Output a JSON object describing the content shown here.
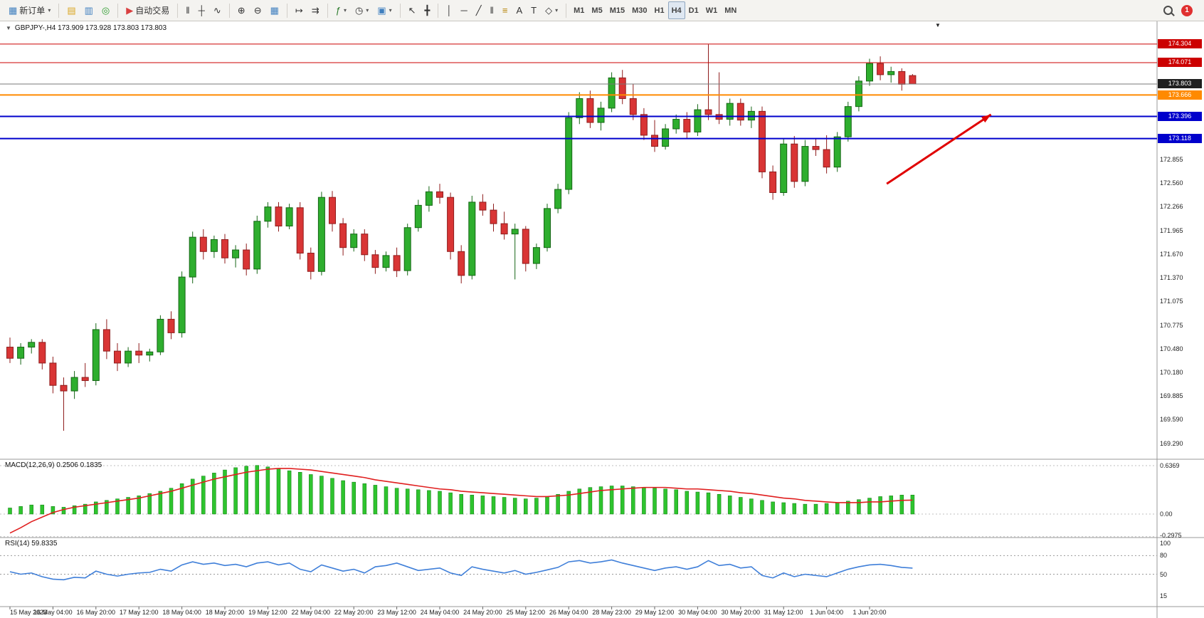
{
  "toolbar": {
    "active_timeframe": "H4",
    "notification_count": "1",
    "groups": [
      {
        "items": [
          {
            "name": "new-order",
            "label": "新订单",
            "glyph": "▦",
            "glyph_color": "#3f7fbf",
            "caret": true
          }
        ]
      },
      {
        "items": [
          {
            "name": "profiles",
            "glyph": "▤",
            "glyph_color": "#d9a520"
          },
          {
            "name": "market-watch",
            "glyph": "▥",
            "glyph_color": "#3f7fbf"
          },
          {
            "name": "navigator",
            "glyph": "◎",
            "glyph_color": "#2a9a2a"
          }
        ]
      },
      {
        "items": [
          {
            "name": "algo-trading",
            "label": "自动交易",
            "glyph": "▶",
            "glyph_color": "#d94040"
          }
        ]
      },
      {
        "items": [
          {
            "name": "bar-chart",
            "glyph": "‖"
          },
          {
            "name": "candlestick-chart",
            "glyph": "┼"
          },
          {
            "name": "line-chart",
            "glyph": "∿"
          }
        ]
      },
      {
        "items": [
          {
            "name": "zoom-in",
            "glyph": "⊕"
          },
          {
            "name": "zoom-out",
            "glyph": "⊖"
          },
          {
            "name": "tile-windows",
            "glyph": "▦",
            "glyph_color": "#3f7fbf"
          }
        ]
      },
      {
        "items": [
          {
            "name": "auto-scroll",
            "glyph": "↦"
          },
          {
            "name": "chart-shift",
            "glyph": "⇉"
          }
        ]
      },
      {
        "items": [
          {
            "name": "indicators",
            "glyph": "ƒ",
            "glyph_color": "#2a7a2a",
            "caret": true
          },
          {
            "name": "periods",
            "glyph": "◷",
            "caret": true
          },
          {
            "name": "templates",
            "glyph": "▣",
            "glyph_color": "#3f7fbf",
            "caret": true
          }
        ]
      },
      {
        "items": [
          {
            "name": "cursor",
            "glyph": "↖"
          },
          {
            "name": "crosshair",
            "glyph": "╋"
          }
        ]
      },
      {
        "items": [
          {
            "name": "vertical-line",
            "glyph": "│"
          },
          {
            "name": "horizontal-line",
            "glyph": "─"
          },
          {
            "name": "trendline",
            "glyph": "╱"
          },
          {
            "name": "equidistant-channel",
            "glyph": "‖"
          },
          {
            "name": "fibonacci",
            "glyph": "≡",
            "glyph_color": "#b8860b"
          },
          {
            "name": "text",
            "glyph": "A"
          },
          {
            "name": "text-label",
            "glyph": "T"
          },
          {
            "name": "shapes",
            "glyph": "◇",
            "caret": true
          }
        ]
      },
      {
        "type": "timeframes",
        "items": [
          {
            "name": "tf-m1",
            "label": "M1"
          },
          {
            "name": "tf-m5",
            "label": "M5"
          },
          {
            "name": "tf-m15",
            "label": "M15"
          },
          {
            "name": "tf-m30",
            "label": "M30"
          },
          {
            "name": "tf-h1",
            "label": "H1"
          },
          {
            "name": "tf-h4",
            "label": "H4"
          },
          {
            "name": "tf-d1",
            "label": "D1"
          },
          {
            "name": "tf-w1",
            "label": "W1"
          },
          {
            "name": "tf-mn",
            "label": "MN"
          }
        ]
      }
    ]
  },
  "chart": {
    "collapse_glyph": "▼",
    "title": "GBPJPY-,H4 173.909 173.928 173.803 173.803",
    "symbol": "GBPJPY-",
    "period": "H4",
    "ohlc": {
      "open": "173.909",
      "high": "173.928",
      "low": "173.803",
      "close": "173.803"
    },
    "shift_marker_glyph": "▼"
  },
  "indicators": {
    "macd": {
      "label": "MACD(12,26,9) 0.2506 0.1835",
      "main": "0.2506",
      "signal": "0.1835",
      "scale_labels": [
        "0.6369",
        "0.00",
        "-0.2975"
      ]
    },
    "rsi": {
      "label": "RSI(14) 59.8335",
      "value": "59.8335",
      "scale_labels": [
        "100",
        "80",
        "50",
        "15"
      ]
    }
  },
  "colors": {
    "bull": "#2eae2e",
    "bull_stroke": "#156615",
    "bear": "#d93535",
    "bear_stroke": "#8f1d1d",
    "macd_bar": "#2ec42e",
    "macd_bar_stroke": "#0f7a0f",
    "macd_signal": "#e01f1f",
    "rsi_line": "#3f7fd9",
    "red_line": "#cc0000",
    "blue_line": "#0000cc",
    "orange_line": "#ff8a00",
    "bid_line": "#777777"
  },
  "chart_data": {
    "type": "candlestick",
    "title": "GBPJPY-,H4",
    "symbol": "GBPJPY-",
    "timeframe": "H4",
    "y_range": {
      "max": 174.5,
      "min": 169.2
    },
    "price_axis_labels": [
      "172.855",
      "172.560",
      "172.266",
      "171.965",
      "171.670",
      "171.370",
      "171.075",
      "170.775",
      "170.480",
      "170.180",
      "169.885",
      "169.590",
      "169.290"
    ],
    "price_lines": [
      {
        "label": "174.304",
        "price": 174.304,
        "color": "#cc0000",
        "width": 1,
        "badge": "#cc0000"
      },
      {
        "label": "174.071",
        "price": 174.071,
        "color": "#cc0000",
        "width": 1,
        "badge": "#cc0000"
      },
      {
        "label": "173.803",
        "price": 173.803,
        "color": "#777777",
        "width": 1,
        "badge": "#1f1f1f",
        "role": "bid"
      },
      {
        "label": "173.666",
        "price": 173.666,
        "color": "#ff8a00",
        "width": 2,
        "badge": "#ff8a00"
      },
      {
        "label": "173.396",
        "price": 173.396,
        "color": "#0000cc",
        "width": 2,
        "badge": "#0000cc"
      },
      {
        "label": "173.118",
        "price": 173.118,
        "color": "#0000cc",
        "width": 2,
        "badge": "#0000cc"
      }
    ],
    "time_labels": [
      "15 May 2023",
      "16 May 04:00",
      "16 May 20:00",
      "17 May 12:00",
      "18 May 04:00",
      "18 May 20:00",
      "19 May 12:00",
      "22 May 04:00",
      "22 May 20:00",
      "23 May 12:00",
      "24 May 04:00",
      "24 May 20:00",
      "25 May 12:00",
      "26 May 04:00",
      "28 May 23:00",
      "29 May 12:00",
      "30 May 04:00",
      "30 May 20:00",
      "31 May 12:00",
      "1 Jun 04:00",
      "1 Jun 20:00"
    ],
    "candles": [
      [
        170.5,
        170.62,
        170.3,
        170.36
      ],
      [
        170.36,
        170.55,
        170.28,
        170.5
      ],
      [
        170.5,
        170.6,
        170.42,
        170.56
      ],
      [
        170.56,
        170.6,
        170.22,
        170.3
      ],
      [
        170.3,
        170.38,
        169.92,
        170.02
      ],
      [
        170.02,
        170.12,
        169.45,
        169.95
      ],
      [
        169.95,
        170.2,
        169.85,
        170.12
      ],
      [
        170.12,
        170.3,
        170.0,
        170.08
      ],
      [
        170.08,
        170.8,
        170.02,
        170.72
      ],
      [
        170.72,
        170.85,
        170.35,
        170.45
      ],
      [
        170.45,
        170.55,
        170.2,
        170.3
      ],
      [
        170.3,
        170.5,
        170.25,
        170.45
      ],
      [
        170.45,
        170.55,
        170.3,
        170.4
      ],
      [
        170.4,
        170.48,
        170.32,
        170.44
      ],
      [
        170.44,
        170.9,
        170.4,
        170.85
      ],
      [
        170.85,
        170.95,
        170.6,
        170.68
      ],
      [
        170.68,
        171.45,
        170.62,
        171.38
      ],
      [
        171.38,
        171.95,
        171.3,
        171.88
      ],
      [
        171.88,
        171.98,
        171.6,
        171.7
      ],
      [
        171.7,
        171.9,
        171.62,
        171.85
      ],
      [
        171.85,
        171.92,
        171.55,
        171.62
      ],
      [
        171.62,
        171.78,
        171.5,
        171.72
      ],
      [
        171.72,
        171.8,
        171.4,
        171.48
      ],
      [
        171.48,
        172.15,
        171.42,
        172.08
      ],
      [
        172.08,
        172.32,
        172.0,
        172.26
      ],
      [
        172.26,
        172.32,
        171.95,
        172.02
      ],
      [
        172.02,
        172.3,
        171.98,
        172.25
      ],
      [
        172.25,
        172.32,
        171.6,
        171.68
      ],
      [
        171.68,
        171.75,
        171.35,
        171.45
      ],
      [
        171.45,
        172.45,
        171.4,
        172.38
      ],
      [
        172.38,
        172.46,
        171.95,
        172.05
      ],
      [
        172.05,
        172.12,
        171.65,
        171.75
      ],
      [
        171.75,
        171.98,
        171.7,
        171.92
      ],
      [
        171.92,
        171.98,
        171.58,
        171.66
      ],
      [
        171.66,
        171.72,
        171.42,
        171.5
      ],
      [
        171.5,
        171.7,
        171.45,
        171.65
      ],
      [
        171.65,
        171.75,
        171.38,
        171.46
      ],
      [
        171.46,
        172.05,
        171.4,
        172.0
      ],
      [
        172.0,
        172.35,
        171.95,
        172.28
      ],
      [
        172.28,
        172.52,
        172.2,
        172.45
      ],
      [
        172.45,
        172.55,
        172.3,
        172.38
      ],
      [
        172.38,
        172.44,
        171.6,
        171.7
      ],
      [
        171.7,
        171.78,
        171.3,
        171.4
      ],
      [
        171.4,
        172.4,
        171.35,
        172.32
      ],
      [
        172.32,
        172.42,
        172.15,
        172.22
      ],
      [
        172.22,
        172.3,
        171.95,
        172.05
      ],
      [
        172.05,
        172.2,
        171.85,
        171.92
      ],
      [
        171.92,
        172.05,
        171.35,
        171.98
      ],
      [
        171.98,
        172.02,
        171.45,
        171.55
      ],
      [
        171.55,
        171.8,
        171.48,
        171.75
      ],
      [
        171.75,
        172.3,
        171.7,
        172.24
      ],
      [
        172.24,
        172.55,
        172.18,
        172.48
      ],
      [
        172.48,
        173.45,
        172.42,
        173.38
      ],
      [
        173.38,
        173.7,
        173.3,
        173.62
      ],
      [
        173.62,
        173.72,
        173.25,
        173.32
      ],
      [
        173.32,
        173.58,
        173.22,
        173.5
      ],
      [
        173.5,
        173.95,
        173.45,
        173.88
      ],
      [
        173.88,
        173.98,
        173.55,
        173.62
      ],
      [
        173.62,
        173.8,
        173.35,
        173.42
      ],
      [
        173.42,
        173.5,
        173.1,
        173.16
      ],
      [
        173.16,
        173.35,
        172.95,
        173.02
      ],
      [
        173.02,
        173.3,
        172.98,
        173.24
      ],
      [
        173.24,
        173.42,
        173.18,
        173.36
      ],
      [
        173.36,
        173.45,
        173.12,
        173.2
      ],
      [
        173.2,
        173.55,
        173.15,
        173.48
      ],
      [
        173.48,
        174.3,
        173.35,
        173.42
      ],
      [
        173.42,
        173.95,
        173.3,
        173.36
      ],
      [
        173.36,
        173.62,
        173.28,
        173.56
      ],
      [
        173.56,
        173.62,
        173.28,
        173.35
      ],
      [
        173.35,
        173.52,
        173.25,
        173.46
      ],
      [
        173.46,
        173.52,
        172.62,
        172.7
      ],
      [
        172.7,
        172.78,
        172.35,
        172.44
      ],
      [
        172.44,
        173.12,
        172.4,
        173.05
      ],
      [
        173.05,
        173.15,
        172.5,
        172.58
      ],
      [
        172.58,
        173.1,
        172.52,
        173.02
      ],
      [
        173.02,
        173.12,
        172.9,
        172.98
      ],
      [
        172.98,
        173.16,
        172.68,
        172.76
      ],
      [
        172.76,
        173.2,
        172.7,
        173.14
      ],
      [
        173.14,
        173.58,
        173.08,
        173.52
      ],
      [
        173.52,
        173.9,
        173.46,
        173.84
      ],
      [
        173.84,
        174.12,
        173.78,
        174.06
      ],
      [
        174.06,
        174.15,
        173.85,
        173.92
      ],
      [
        173.92,
        174.02,
        173.82,
        173.96
      ],
      [
        173.96,
        174.0,
        173.72,
        173.8
      ],
      [
        173.909,
        173.928,
        173.803,
        173.803
      ]
    ],
    "macd": {
      "range": {
        "max": 0.6369,
        "min": -0.2975
      },
      "histogram": [
        0.08,
        0.1,
        0.12,
        0.12,
        0.1,
        0.09,
        0.11,
        0.13,
        0.16,
        0.18,
        0.2,
        0.22,
        0.24,
        0.27,
        0.3,
        0.34,
        0.4,
        0.46,
        0.5,
        0.54,
        0.58,
        0.61,
        0.63,
        0.64,
        0.62,
        0.6,
        0.57,
        0.55,
        0.52,
        0.5,
        0.47,
        0.44,
        0.42,
        0.4,
        0.38,
        0.36,
        0.34,
        0.33,
        0.32,
        0.31,
        0.3,
        0.28,
        0.26,
        0.25,
        0.24,
        0.23,
        0.22,
        0.21,
        0.2,
        0.21,
        0.23,
        0.26,
        0.3,
        0.33,
        0.35,
        0.36,
        0.37,
        0.37,
        0.36,
        0.35,
        0.34,
        0.33,
        0.32,
        0.3,
        0.29,
        0.28,
        0.26,
        0.24,
        0.22,
        0.2,
        0.18,
        0.16,
        0.15,
        0.14,
        0.13,
        0.13,
        0.14,
        0.15,
        0.17,
        0.19,
        0.21,
        0.23,
        0.24,
        0.25,
        0.2506
      ],
      "signal": [
        -0.25,
        -0.18,
        -0.1,
        -0.04,
        0.02,
        0.06,
        0.09,
        0.11,
        0.13,
        0.15,
        0.17,
        0.19,
        0.21,
        0.24,
        0.27,
        0.3,
        0.34,
        0.38,
        0.42,
        0.46,
        0.49,
        0.52,
        0.55,
        0.57,
        0.59,
        0.6,
        0.6,
        0.59,
        0.58,
        0.56,
        0.54,
        0.52,
        0.5,
        0.48,
        0.45,
        0.43,
        0.41,
        0.39,
        0.37,
        0.35,
        0.33,
        0.32,
        0.3,
        0.29,
        0.28,
        0.27,
        0.26,
        0.25,
        0.24,
        0.23,
        0.23,
        0.24,
        0.25,
        0.27,
        0.29,
        0.31,
        0.32,
        0.33,
        0.34,
        0.35,
        0.35,
        0.35,
        0.34,
        0.33,
        0.33,
        0.32,
        0.31,
        0.3,
        0.28,
        0.27,
        0.25,
        0.23,
        0.21,
        0.2,
        0.18,
        0.17,
        0.16,
        0.15,
        0.15,
        0.15,
        0.16,
        0.16,
        0.17,
        0.18,
        0.1835
      ]
    },
    "rsi": {
      "levels": [
        80,
        50
      ],
      "axis_values": [
        100,
        80,
        50,
        15
      ],
      "values": [
        54,
        50,
        52,
        46,
        42,
        41,
        45,
        44,
        55,
        50,
        47,
        50,
        52,
        53,
        58,
        55,
        65,
        70,
        66,
        68,
        64,
        66,
        62,
        68,
        70,
        65,
        68,
        58,
        54,
        65,
        60,
        55,
        58,
        52,
        62,
        64,
        68,
        62,
        56,
        58,
        60,
        52,
        48,
        62,
        58,
        55,
        52,
        56,
        50,
        53,
        57,
        61,
        70,
        72,
        68,
        70,
        73,
        68,
        64,
        60,
        56,
        60,
        62,
        58,
        62,
        72,
        64,
        66,
        60,
        62,
        48,
        44,
        52,
        46,
        50,
        48,
        46,
        52,
        58,
        62,
        65,
        66,
        64,
        61,
        59.83
      ]
    },
    "annotations": [
      {
        "type": "arrow",
        "from": {
          "idx": 81.6,
          "price": 172.55
        },
        "to": {
          "idx": 91.3,
          "price": 173.42
        },
        "color": "#e00000"
      }
    ]
  }
}
